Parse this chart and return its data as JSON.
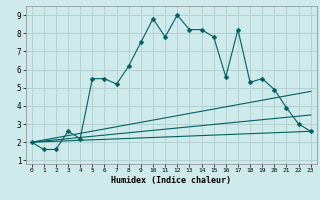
{
  "title": "",
  "xlabel": "Humidex (Indice chaleur)",
  "ylabel": "",
  "bg_color": "#ceeaea",
  "grid_color": "#b0cece",
  "line_color": "#006060",
  "xlim": [
    -0.5,
    23.5
  ],
  "ylim": [
    0.8,
    9.5
  ],
  "xticks": [
    0,
    1,
    2,
    3,
    4,
    5,
    6,
    7,
    8,
    9,
    10,
    11,
    12,
    13,
    14,
    15,
    16,
    17,
    18,
    19,
    20,
    21,
    22,
    23
  ],
  "yticks": [
    1,
    2,
    3,
    4,
    5,
    6,
    7,
    8,
    9
  ],
  "line1_x": [
    0,
    1,
    2,
    3,
    4,
    5,
    6,
    7,
    8,
    9,
    10,
    11,
    12,
    13,
    14,
    15,
    16,
    17,
    18,
    19,
    20,
    21,
    22,
    23
  ],
  "line1_y": [
    2.0,
    1.6,
    1.6,
    2.6,
    2.2,
    5.5,
    5.5,
    5.2,
    6.2,
    7.5,
    8.8,
    7.8,
    9.0,
    8.2,
    8.2,
    7.8,
    5.6,
    8.2,
    5.3,
    5.5,
    4.9,
    3.9,
    3.0,
    2.6
  ],
  "line2_x": [
    0,
    23
  ],
  "line2_y": [
    2.0,
    4.8
  ],
  "line3_x": [
    0,
    23
  ],
  "line3_y": [
    2.0,
    3.5
  ],
  "line4_x": [
    0,
    23
  ],
  "line4_y": [
    2.0,
    2.6
  ],
  "marker": "D",
  "markersize": 2.5
}
